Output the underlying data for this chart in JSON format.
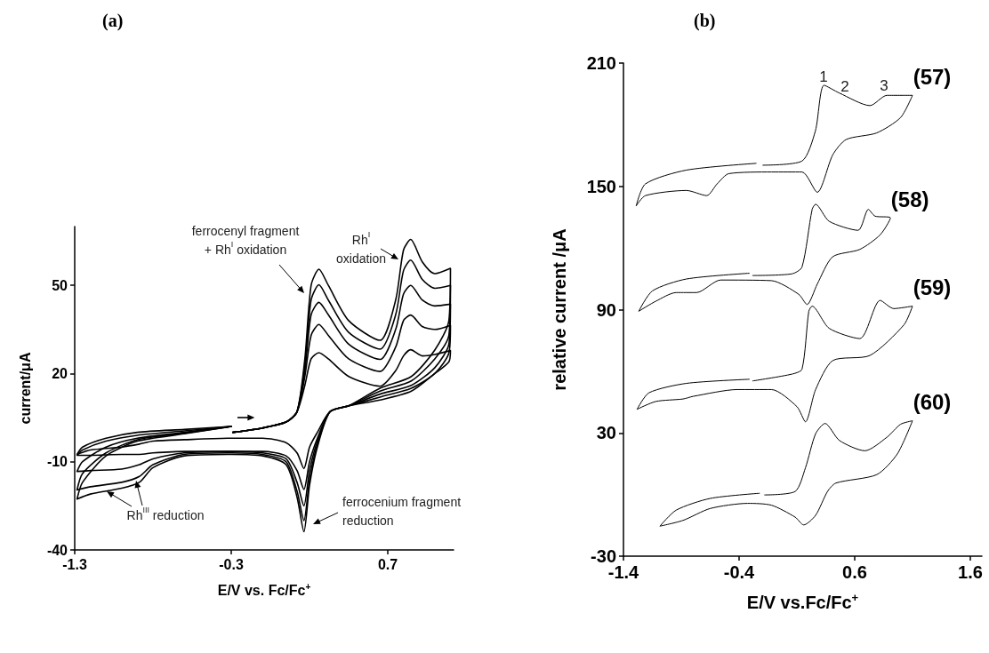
{
  "chart_data": [
    {
      "type": "line",
      "title": "(a)",
      "xlabel": "E/V vs. Fc/Fc$^{+}$",
      "ylabel": "current/μA",
      "xlim": [
        -1.3,
        1.12
      ],
      "xticks": [
        -1.3,
        -0.3,
        0.7
      ],
      "ylim": [
        -40,
        70
      ],
      "yticks": [
        -40,
        -10,
        20,
        50
      ],
      "grid": false,
      "marker": "none",
      "line_style": "solid",
      "series": [
        {
          "color": "#000000",
          "x": [
            -0.29,
            -0.1,
            0.05,
            0.12,
            0.17,
            0.21,
            0.26,
            0.32,
            0.45,
            0.65,
            0.75,
            0.8,
            0.846,
            0.92,
            1.0,
            1.1,
            1.09,
            1.0,
            0.85,
            0.65,
            0.45,
            0.33,
            0.25,
            0.2,
            0.164,
            0.12,
            0.05,
            -0.1,
            -0.3,
            -0.6,
            -0.8,
            -0.887,
            -1.0,
            -1.2,
            -1.285,
            -1.25,
            -1.1,
            -0.9,
            -0.6,
            -0.3
          ],
          "values": [
            0,
            1.5,
            3.5,
            7,
            25,
            50,
            55.5,
            50,
            38,
            31.3,
            45,
            62,
            65.6,
            58,
            54,
            55.8,
            38,
            28,
            19,
            15,
            9,
            7,
            -5,
            -18,
            -33.8,
            -22,
            -11,
            -8,
            -7.5,
            -8,
            -12,
            -17,
            -19,
            -21,
            -22.7,
            -17,
            -8,
            -3,
            -0.5,
            2
          ]
        },
        {
          "color": "#000000",
          "x": [
            -0.29,
            -0.1,
            0.05,
            0.12,
            0.17,
            0.21,
            0.26,
            0.32,
            0.45,
            0.65,
            0.75,
            0.8,
            0.846,
            0.92,
            1.0,
            1.1,
            1.09,
            1.0,
            0.85,
            0.65,
            0.45,
            0.33,
            0.25,
            0.2,
            0.164,
            0.12,
            0.05,
            -0.1,
            -0.3,
            -0.6,
            -0.8,
            -0.887,
            -1.0,
            -1.2,
            -1.285,
            -1.25,
            -1.1,
            -0.9,
            -0.6,
            -0.3
          ],
          "values": [
            0,
            1.5,
            3.5,
            7,
            23,
            45,
            50.2,
            45,
            34,
            28.3,
            40,
            55,
            58.6,
            52,
            49,
            50,
            33,
            25,
            17.5,
            14,
            9,
            7,
            -4,
            -16,
            -30,
            -20,
            -10,
            -7.5,
            -7,
            -7.5,
            -11,
            -15,
            -17,
            -18.5,
            -19.6,
            -14,
            -7,
            -2.5,
            -0.3,
            2
          ]
        },
        {
          "color": "#000000",
          "x": [
            -0.29,
            -0.1,
            0.05,
            0.12,
            0.17,
            0.21,
            0.26,
            0.32,
            0.45,
            0.65,
            0.75,
            0.8,
            0.846,
            0.92,
            1.0,
            1.1,
            1.09,
            1.0,
            0.85,
            0.65,
            0.45,
            0.33,
            0.25,
            0.2,
            0.164,
            0.12,
            0.05,
            -0.1,
            -0.3,
            -0.6,
            -0.8,
            -0.887,
            -1.0,
            -1.2,
            -1.285,
            -1.25,
            -1.1,
            -0.9,
            -0.6,
            -0.3
          ],
          "values": [
            0,
            1.5,
            3.5,
            7,
            21,
            40,
            44.2,
            40,
            30,
            24.8,
            35,
            47,
            50,
            45,
            43,
            43.6,
            30,
            22,
            16,
            13,
            9,
            7,
            -3,
            -13,
            -25,
            -17,
            -9,
            -7,
            -6.5,
            -7,
            -9,
            -11,
            -12.5,
            -13,
            -13.3,
            -10,
            -5,
            -2,
            0,
            2
          ]
        },
        {
          "color": "#000000",
          "x": [
            -0.29,
            -0.1,
            0.05,
            0.12,
            0.17,
            0.21,
            0.26,
            0.32,
            0.45,
            0.65,
            0.75,
            0.8,
            0.846,
            0.92,
            1.0,
            1.1,
            1.09,
            1.0,
            0.85,
            0.65,
            0.45,
            0.33,
            0.25,
            0.2,
            0.164,
            0.12,
            0.05,
            -0.1,
            -0.3,
            -0.6,
            -0.8,
            -0.887,
            -1.0,
            -1.2,
            -1.285,
            -1.25,
            -1.1,
            -0.9,
            -0.6,
            -0.3
          ],
          "values": [
            0,
            1.5,
            3.5,
            7,
            19,
            33,
            36.7,
            33,
            25,
            20.7,
            29,
            38,
            39.9,
            36,
            35,
            36.4,
            27,
            20,
            15,
            12,
            9,
            7,
            -2,
            -10,
            -19.4,
            -13,
            -8,
            -6.5,
            -6.5,
            -6.5,
            -7,
            -7.5,
            -7.5,
            -7.8,
            -7.8,
            -6,
            -3,
            -1,
            0.5,
            2
          ]
        },
        {
          "color": "#000000",
          "x": [
            -0.29,
            -0.1,
            0.05,
            0.12,
            0.17,
            0.21,
            0.26,
            0.32,
            0.45,
            0.65,
            0.75,
            0.8,
            0.846,
            0.92,
            1.0,
            1.1,
            1.09,
            1.0,
            0.85,
            0.65,
            0.45,
            0.33,
            0.25,
            0.2,
            0.164,
            0.12,
            0.05,
            -0.1,
            -0.3,
            -0.6,
            -0.8,
            -0.887,
            -1.0,
            -1.2,
            -1.285,
            -1.25,
            -1.1,
            -0.9,
            -0.6,
            -0.3
          ],
          "values": [
            0,
            1.5,
            3.5,
            7,
            16,
            25,
            27.1,
            25,
            19,
            15.7,
            21,
            26,
            28.1,
            26,
            26.5,
            27.8,
            24,
            20,
            14,
            11,
            9,
            7,
            0,
            -5,
            -12.3,
            -7,
            -3.5,
            -2,
            -2,
            -2.5,
            -3,
            -4,
            -5,
            -6,
            -7.5,
            -5,
            -2,
            0,
            1,
            2
          ]
        }
      ],
      "annotations": [
        "ferrocenyl fragment\n+ Rh$^{I}$ oxidation",
        "Rh$^{I}$\noxidation",
        "Rh$^{III}$ reduction",
        "ferrocenium fragment\nreduction"
      ]
    },
    {
      "type": "line",
      "title": "(b)",
      "xlabel": "E/V vs.Fc/Fc$^{+}$",
      "ylabel": "relative current /μA",
      "xlim": [
        -1.4,
        1.7
      ],
      "xticks": [
        -1.4,
        -0.4,
        0.6,
        1.6
      ],
      "ylim": [
        -30,
        210
      ],
      "yticks": [
        -30,
        30,
        90,
        150,
        210
      ],
      "grid": false,
      "marker": "none",
      "line_style": "solid",
      "series": [
        {
          "name": "(57)",
          "color": "#000000",
          "x": [
            -0.194,
            0.144,
            0.26,
            0.335,
            0.468,
            0.732,
            0.879,
            1.1,
            0.997,
            0.79,
            0.526,
            0.41,
            0.276,
            0.144,
            -0.12,
            -0.488,
            -0.59,
            -0.68,
            -0.856,
            -1.21,
            -1.29,
            -1.21,
            -0.856,
            -0.253
          ],
          "values": [
            160.3,
            162.3,
            177,
            199.2,
            195.4,
            189.3,
            194.3,
            194.3,
            183.5,
            176,
            172.8,
            165.3,
            147.1,
            157,
            157,
            156.2,
            151.2,
            145.5,
            148,
            145.5,
            140.5,
            151.2,
            157.9,
            161.2
          ]
        },
        {
          "name": "(58)",
          "color": "#000000",
          "x": [
            -0.282,
            0.056,
            0.144,
            0.232,
            0.262,
            0.379,
            0.629,
            0.718,
            0.776,
            0.909,
            0.82,
            0.644,
            0.409,
            0.276,
            0.188,
            0.115,
            -0.12,
            -0.56,
            -0.768,
            -0.944,
            -1.12,
            -1.268,
            -1.15,
            -0.856,
            -0.312
          ],
          "values": [
            106.6,
            107.4,
            110.7,
            138.8,
            141.3,
            133,
            128.6,
            138.8,
            135.5,
            134.7,
            126.4,
            119.3,
            115.7,
            102.4,
            92.5,
            97.5,
            104.1,
            104.4,
            98.3,
            98.3,
            94.1,
            89.2,
            99.1,
            104.9,
            107.7
          ]
        },
        {
          "name": "(59)",
          "color": "#000000",
          "x": [
            -0.282,
            0.056,
            0.144,
            0.203,
            0.232,
            0.379,
            0.644,
            0.82,
            0.938,
            1.1,
            1.026,
            0.732,
            0.41,
            0.262,
            0.174,
            0.1,
            -0.12,
            -0.415,
            -0.797,
            -0.885,
            -1.12,
            -1.282,
            -1.18,
            -0.856,
            -0.312
          ],
          "values": [
            55.3,
            58.6,
            61,
            89.2,
            91.7,
            80.9,
            75.9,
            94.5,
            90.5,
            91.7,
            82.6,
            67.7,
            65.2,
            51.1,
            35.4,
            42.8,
            51.1,
            51.1,
            47.8,
            46.5,
            45.3,
            41.5,
            49.5,
            54.1,
            56.1
          ]
        },
        {
          "name": "(60)",
          "color": "#000000",
          "x": [
            -0.179,
            0.085,
            0.174,
            0.262,
            0.344,
            0.468,
            0.688,
            0.879,
            0.997,
            1.1,
            0.968,
            0.791,
            0.438,
            0.365,
            0.262,
            0.159,
            0.085,
            -0.12,
            -0.326,
            -0.65,
            -0.885,
            -1.085,
            -0.944,
            -0.65,
            -0.224
          ],
          "values": [
            -0.2,
            1.5,
            13,
            29.6,
            34.6,
            26.3,
            21.3,
            27.9,
            34.2,
            35.9,
            19.7,
            9.7,
            5.6,
            1.5,
            -10.1,
            -14.8,
            -11,
            -5.2,
            -4.3,
            -6.8,
            -12.6,
            -15.4,
            -7.6,
            -1.9,
            0.6
          ]
        }
      ],
      "annotations": [
        "1",
        "2",
        "3"
      ]
    }
  ]
}
